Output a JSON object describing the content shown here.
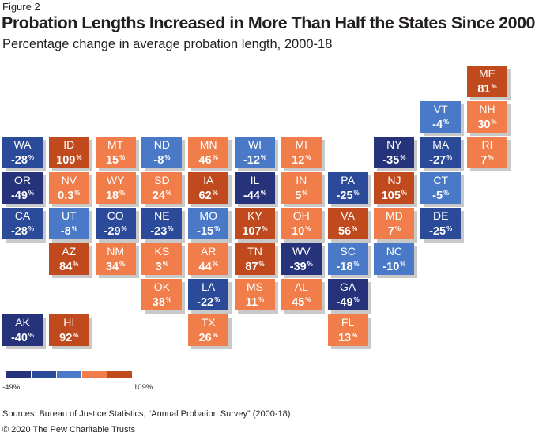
{
  "figure_label": "Figure 2",
  "title": "Probation Lengths Increased in More Than Half the States Since 2000",
  "subtitle": "Percentage change in average probation length, 2000-18",
  "colors": {
    "bin_1": "#26337a",
    "bin_2": "#2b4a9a",
    "bin_3": "#4a7ac7",
    "bin_4": "#f07d4a",
    "bin_5": "#c04a1e",
    "tile_shadow": "#c9c9c9"
  },
  "chart_data": {
    "type": "tile-grid-map",
    "value_unit": "%",
    "legend": {
      "min_label": "-49%",
      "max_label": "109%",
      "bins": [
        "bin_1",
        "bin_2",
        "bin_3",
        "bin_4",
        "bin_5"
      ]
    },
    "tiles": [
      {
        "state": "ME",
        "value": 81,
        "col": 10,
        "row": 0,
        "bin": "bin_5"
      },
      {
        "state": "VT",
        "value": -4,
        "col": 9,
        "row": 1,
        "bin": "bin_3"
      },
      {
        "state": "NH",
        "value": 30,
        "col": 10,
        "row": 1,
        "bin": "bin_4"
      },
      {
        "state": "WA",
        "value": -28,
        "col": 0,
        "row": 2,
        "bin": "bin_2"
      },
      {
        "state": "ID",
        "value": 109,
        "col": 1,
        "row": 2,
        "bin": "bin_5"
      },
      {
        "state": "MT",
        "value": 15,
        "col": 2,
        "row": 2,
        "bin": "bin_4"
      },
      {
        "state": "ND",
        "value": -8,
        "col": 3,
        "row": 2,
        "bin": "bin_3"
      },
      {
        "state": "MN",
        "value": 46,
        "col": 4,
        "row": 2,
        "bin": "bin_4"
      },
      {
        "state": "WI",
        "value": -12,
        "col": 5,
        "row": 2,
        "bin": "bin_3"
      },
      {
        "state": "MI",
        "value": 12,
        "col": 6,
        "row": 2,
        "bin": "bin_4"
      },
      {
        "state": "NY",
        "value": -35,
        "col": 8,
        "row": 2,
        "bin": "bin_1"
      },
      {
        "state": "MA",
        "value": -27,
        "col": 9,
        "row": 2,
        "bin": "bin_2"
      },
      {
        "state": "RI",
        "value": 7,
        "col": 10,
        "row": 2,
        "bin": "bin_4"
      },
      {
        "state": "OR",
        "value": -49,
        "col": 0,
        "row": 3,
        "bin": "bin_1"
      },
      {
        "state": "NV",
        "value": 0.3,
        "col": 1,
        "row": 3,
        "bin": "bin_4"
      },
      {
        "state": "WY",
        "value": 18,
        "col": 2,
        "row": 3,
        "bin": "bin_4"
      },
      {
        "state": "SD",
        "value": 24,
        "col": 3,
        "row": 3,
        "bin": "bin_4"
      },
      {
        "state": "IA",
        "value": 62,
        "col": 4,
        "row": 3,
        "bin": "bin_5"
      },
      {
        "state": "IL",
        "value": -44,
        "col": 5,
        "row": 3,
        "bin": "bin_1"
      },
      {
        "state": "IN",
        "value": 5,
        "col": 6,
        "row": 3,
        "bin": "bin_4"
      },
      {
        "state": "PA",
        "value": -25,
        "col": 7,
        "row": 3,
        "bin": "bin_2"
      },
      {
        "state": "NJ",
        "value": 105,
        "col": 8,
        "row": 3,
        "bin": "bin_5"
      },
      {
        "state": "CT",
        "value": -5,
        "col": 9,
        "row": 3,
        "bin": "bin_3"
      },
      {
        "state": "CA",
        "value": -28,
        "col": 0,
        "row": 4,
        "bin": "bin_2"
      },
      {
        "state": "UT",
        "value": -8,
        "col": 1,
        "row": 4,
        "bin": "bin_3"
      },
      {
        "state": "CO",
        "value": -29,
        "col": 2,
        "row": 4,
        "bin": "bin_2"
      },
      {
        "state": "NE",
        "value": -23,
        "col": 3,
        "row": 4,
        "bin": "bin_2"
      },
      {
        "state": "MO",
        "value": -15,
        "col": 4,
        "row": 4,
        "bin": "bin_3"
      },
      {
        "state": "KY",
        "value": 107,
        "col": 5,
        "row": 4,
        "bin": "bin_5"
      },
      {
        "state": "OH",
        "value": 10,
        "col": 6,
        "row": 4,
        "bin": "bin_4"
      },
      {
        "state": "VA",
        "value": 56,
        "col": 7,
        "row": 4,
        "bin": "bin_5"
      },
      {
        "state": "MD",
        "value": 7,
        "col": 8,
        "row": 4,
        "bin": "bin_4"
      },
      {
        "state": "DE",
        "value": -25,
        "col": 9,
        "row": 4,
        "bin": "bin_2"
      },
      {
        "state": "AZ",
        "value": 84,
        "col": 1,
        "row": 5,
        "bin": "bin_5"
      },
      {
        "state": "NM",
        "value": 34,
        "col": 2,
        "row": 5,
        "bin": "bin_4"
      },
      {
        "state": "KS",
        "value": 3,
        "col": 3,
        "row": 5,
        "bin": "bin_4"
      },
      {
        "state": "AR",
        "value": 44,
        "col": 4,
        "row": 5,
        "bin": "bin_4"
      },
      {
        "state": "TN",
        "value": 87,
        "col": 5,
        "row": 5,
        "bin": "bin_5"
      },
      {
        "state": "WV",
        "value": -39,
        "col": 6,
        "row": 5,
        "bin": "bin_1"
      },
      {
        "state": "SC",
        "value": -18,
        "col": 7,
        "row": 5,
        "bin": "bin_3"
      },
      {
        "state": "NC",
        "value": -10,
        "col": 8,
        "row": 5,
        "bin": "bin_3"
      },
      {
        "state": "OK",
        "value": 38,
        "col": 3,
        "row": 6,
        "bin": "bin_4"
      },
      {
        "state": "LA",
        "value": -22,
        "col": 4,
        "row": 6,
        "bin": "bin_2"
      },
      {
        "state": "MS",
        "value": 11,
        "col": 5,
        "row": 6,
        "bin": "bin_4"
      },
      {
        "state": "AL",
        "value": 45,
        "col": 6,
        "row": 6,
        "bin": "bin_4"
      },
      {
        "state": "GA",
        "value": -49,
        "col": 7,
        "row": 6,
        "bin": "bin_1"
      },
      {
        "state": "AK",
        "value": -40,
        "col": 0,
        "row": 7,
        "bin": "bin_1"
      },
      {
        "state": "HI",
        "value": 92,
        "col": 1,
        "row": 7,
        "bin": "bin_5"
      },
      {
        "state": "TX",
        "value": 26,
        "col": 4,
        "row": 7,
        "bin": "bin_4"
      },
      {
        "state": "FL",
        "value": 13,
        "col": 7,
        "row": 7,
        "bin": "bin_4"
      }
    ]
  },
  "source": "Sources: Bureau of Justice Statistics, “Annual Probation Survey” (2000-18)",
  "copyright": "© 2020 The Pew Charitable Trusts"
}
